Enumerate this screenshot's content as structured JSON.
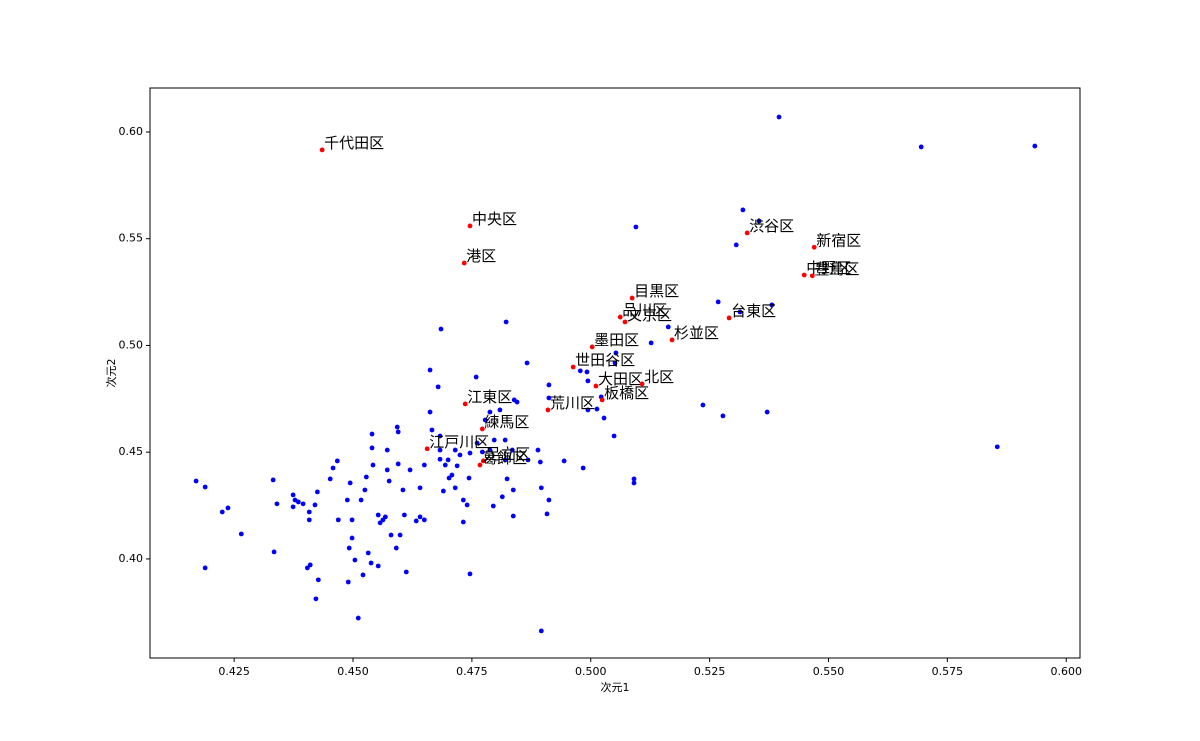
{
  "chart_data": {
    "type": "scatter",
    "x_label": "次元1",
    "y_label": "次元2",
    "xlim": [
      0.4073,
      0.6029
    ],
    "ylim": [
      0.3536,
      0.6206
    ],
    "xticks": [
      0.425,
      {
        "value": 0.45,
        "label": "0.450"
      },
      0.475,
      {
        "value": 0.5,
        "label": "0.500"
      },
      0.525,
      {
        "value": 0.55,
        "label": "0.550"
      },
      0.575,
      {
        "value": 0.6,
        "label": "0.600"
      }
    ],
    "yticks": [
      {
        "value": 0.4,
        "label": "0.40"
      },
      0.45,
      {
        "value": 0.5,
        "label": "0.50"
      },
      0.55,
      {
        "value": 0.6,
        "label": "0.60"
      }
    ],
    "series": [
      {
        "color": "#0000ff",
        "x": [
          0.5396,
          0.5695,
          0.5934,
          0.5855,
          0.532,
          0.5354,
          0.5095,
          0.5306,
          0.5268,
          0.5381,
          0.5314,
          0.5163,
          0.5127,
          0.5236,
          0.5278,
          0.5371,
          0.4685,
          0.4822,
          0.4759,
          0.4866,
          0.4845,
          0.4662,
          0.4679,
          0.4912,
          0.4912,
          0.4978,
          0.4992,
          0.4994,
          0.5053,
          0.5051,
          0.5022,
          0.5028,
          0.4994,
          0.5013,
          0.5049,
          0.5091,
          0.5091,
          0.4984,
          0.4944,
          0.4889,
          0.4894,
          0.4896,
          0.4912,
          0.4908,
          0.4896,
          0.4868,
          0.4835,
          0.4839,
          0.4809,
          0.4788,
          0.4778,
          0.4797,
          0.482,
          0.482,
          0.4824,
          0.4837,
          0.4814,
          0.4837,
          0.4795,
          0.4761,
          0.4746,
          0.4719,
          0.4708,
          0.4715,
          0.4744,
          0.4732,
          0.474,
          0.4732,
          0.4746,
          0.4662,
          0.4666,
          0.4683,
          0.4694,
          0.4702,
          0.469,
          0.4683,
          0.465,
          0.4641,
          0.4633,
          0.465,
          0.462,
          0.4595,
          0.4605,
          0.4608,
          0.4599,
          0.4572,
          0.4572,
          0.4576,
          0.454,
          0.454,
          0.4542,
          0.4593,
          0.4595,
          0.4528,
          0.4517,
          0.4494,
          0.4488,
          0.4498,
          0.4498,
          0.4492,
          0.4467,
          0.4458,
          0.4452,
          0.4425,
          0.442,
          0.4408,
          0.4408,
          0.441,
          0.4404,
          0.4427,
          0.4422,
          0.4511,
          0.4374,
          0.4378,
          0.4374,
          0.4385,
          0.4395,
          0.4332,
          0.434,
          0.4334,
          0.4265,
          0.4237,
          0.4225,
          0.417,
          0.4189,
          0.4189,
          0.449,
          0.4504,
          0.4538,
          0.4553,
          0.4532,
          0.4557,
          0.4553,
          0.4563,
          0.458,
          0.4591,
          0.4612,
          0.4641,
          0.4469,
          0.4525,
          0.4568,
          0.4521,
          0.4683,
          0.47,
          0.4715,
          0.4725,
          0.4772,
          0.4788
        ],
        "y": [
          0.607,
          0.593,
          0.5934,
          0.4525,
          0.5635,
          0.5583,
          0.5555,
          0.5471,
          0.5204,
          0.519,
          0.5157,
          0.5087,
          0.5012,
          0.4721,
          0.467,
          0.4688,
          0.5077,
          0.511,
          0.4852,
          0.4918,
          0.4735,
          0.4885,
          0.4806,
          0.4815,
          0.4754,
          0.4881,
          0.4876,
          0.4834,
          0.4965,
          0.4918,
          0.4759,
          0.466,
          0.4698,
          0.4702,
          0.4576,
          0.4375,
          0.4356,
          0.4426,
          0.4459,
          0.451,
          0.4454,
          0.4333,
          0.4276,
          0.4211,
          0.3663,
          0.4464,
          0.451,
          0.4745,
          0.4698,
          0.4688,
          0.4651,
          0.4557,
          0.4557,
          0.4464,
          0.4375,
          0.4323,
          0.4291,
          0.4201,
          0.4248,
          0.4543,
          0.4496,
          0.4436,
          0.4393,
          0.4333,
          0.4379,
          0.4276,
          0.4253,
          0.4173,
          0.393,
          0.4688,
          0.4604,
          0.4576,
          0.444,
          0.4379,
          0.4318,
          0.451,
          0.444,
          0.4333,
          0.4178,
          0.4183,
          0.4417,
          0.4445,
          0.4323,
          0.4206,
          0.4112,
          0.451,
          0.4417,
          0.4365,
          0.4585,
          0.452,
          0.444,
          0.4618,
          0.4595,
          0.4384,
          0.4276,
          0.4356,
          0.4276,
          0.4183,
          0.4098,
          0.4051,
          0.4459,
          0.4426,
          0.4375,
          0.4314,
          0.4253,
          0.422,
          0.4183,
          0.3972,
          0.3958,
          0.3902,
          0.3813,
          0.3723,
          0.43,
          0.4276,
          0.4244,
          0.4267,
          0.4258,
          0.437,
          0.4258,
          0.4033,
          0.4117,
          0.4239,
          0.422,
          0.4365,
          0.4337,
          0.3958,
          0.3892,
          0.3995,
          0.3981,
          0.3967,
          0.4028,
          0.4169,
          0.4206,
          0.4183,
          0.4112,
          0.4051,
          0.3939,
          0.4197,
          0.4183,
          0.4323,
          0.4197,
          0.3925,
          0.4467,
          0.4464,
          0.451,
          0.4487,
          0.4501,
          0.451
        ]
      },
      {
        "color": "#ff0000",
        "labels": [
          "千代田区",
          "中央区",
          "港区",
          "渋谷区",
          "新宿区",
          "中野区",
          "豊島区",
          "目黒区",
          "品川区",
          "文京区",
          "台東区",
          "杉並区",
          "墨田区",
          "世田谷区",
          "大田区",
          "北区",
          "板橋区",
          "荒川区",
          "江東区",
          "練馬区",
          "江戸川区",
          "足立区",
          "葛飾区"
        ],
        "x": [
          0.4435,
          0.4746,
          0.4734,
          0.5329,
          0.547,
          0.5449,
          0.5466,
          0.5087,
          0.5062,
          0.5072,
          0.5291,
          0.5171,
          0.5003,
          0.4963,
          0.5011,
          0.5108,
          0.5024,
          0.491,
          0.4736,
          0.4772,
          0.4656,
          0.4774,
          0.4767
        ],
        "y": [
          0.5916,
          0.556,
          0.5386,
          0.5527,
          0.546,
          0.533,
          0.5326,
          0.5222,
          0.5133,
          0.511,
          0.5129,
          0.5026,
          0.4993,
          0.4899,
          0.481,
          0.482,
          0.4745,
          0.4698,
          0.4726,
          0.4609,
          0.4516,
          0.4459,
          0.444
        ]
      }
    ]
  }
}
